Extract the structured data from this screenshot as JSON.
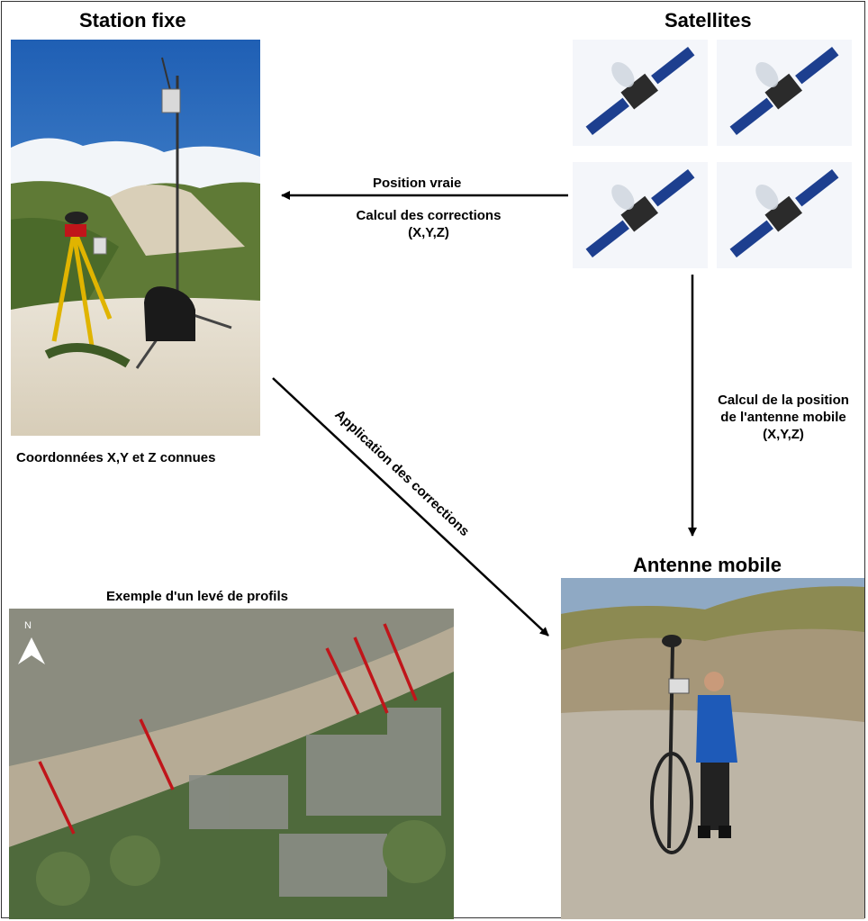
{
  "titles": {
    "station": "Station fixe",
    "satellites": "Satellites",
    "antenna": "Antenne mobile",
    "example": "Exemple d'un levé de profils"
  },
  "labels": {
    "station_coords": "Coordonnées X,Y et Z connues",
    "position_vraie": "Position vraie",
    "calcul_corrections": "Calcul des corrections",
    "xyz_1": "(X,Y,Z)",
    "calcul_position_1": "Calcul de la position",
    "calcul_position_2": "de l'antenne mobile",
    "xyz_2": "(X,Y,Z)",
    "application_corrections": "Application des corrections"
  },
  "map": {
    "north_label": "N",
    "profile_color": "#c0151a"
  },
  "icons": [
    "satellite-icon",
    "satellite-icon",
    "satellite-icon",
    "satellite-icon",
    "north-arrow-icon"
  ]
}
